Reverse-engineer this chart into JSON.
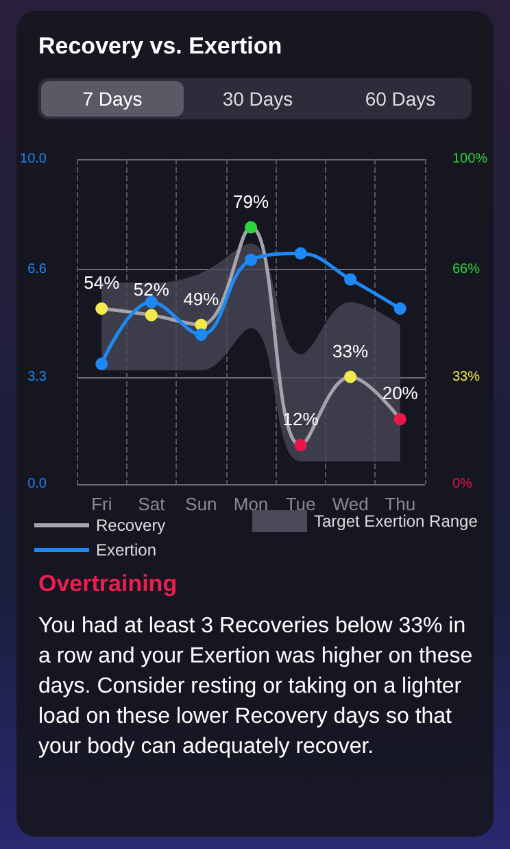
{
  "chart_data": {
    "type": "line",
    "title": "Recovery vs. Exertion",
    "categories": [
      "Fri",
      "Sat",
      "Sun",
      "Mon",
      "Tue",
      "Wed",
      "Thu"
    ],
    "series": [
      {
        "name": "Recovery",
        "color": "#a4a4ac",
        "axis": "y2",
        "values": [
          54,
          52,
          49,
          79,
          12,
          33,
          20
        ],
        "colors": [
          "#f2ea4c",
          "#f2ea4c",
          "#f2ea4c",
          "#2fd43c",
          "#e8174a",
          "#f2ea4c",
          "#e8174a"
        ],
        "value_labels": [
          "54%",
          "52%",
          "49%",
          "79%",
          "12%",
          "33%",
          "20%"
        ]
      },
      {
        "name": "Exertion",
        "color": "#1e88f5",
        "values": [
          3.7,
          5.6,
          4.6,
          6.9,
          7.1,
          6.3,
          5.4
        ],
        "lower": [
          3.5,
          3.5,
          3.5,
          4.8,
          0.7,
          0.7,
          0.7
        ],
        "upper": [
          6.2,
          6.2,
          6.5,
          7.4,
          4.0,
          5.6,
          4.9
        ]
      }
    ],
    "ylim": [
      0,
      10
    ],
    "yticks": [
      {
        "value": 0,
        "label": "0.0"
      },
      3.3,
      6.6,
      {
        "value": 10,
        "label": "10.0"
      }
    ],
    "y2lim": [
      0,
      100
    ],
    "y2ticks": [
      {
        "value": 0,
        "label": "0%"
      },
      {
        "value": 33,
        "label": "33%"
      },
      {
        "value": 66,
        "label": "66%"
      },
      {
        "value": 100,
        "label": "100%"
      }
    ],
    "grid": true,
    "legend": "bottom",
    "marker": "circle",
    "line_style": "solid",
    "annotations": [
      "7 Days",
      "30 Days",
      "60 Days",
      "Overtraining",
      "You had at least 3 Recoveries below 33% in a row and your Exertion was higher on these days. Consider resting or taking on a lighter load on these lower Recovery days so that your body can adequately recover.",
      "Target Exertion Range"
    ]
  }
}
